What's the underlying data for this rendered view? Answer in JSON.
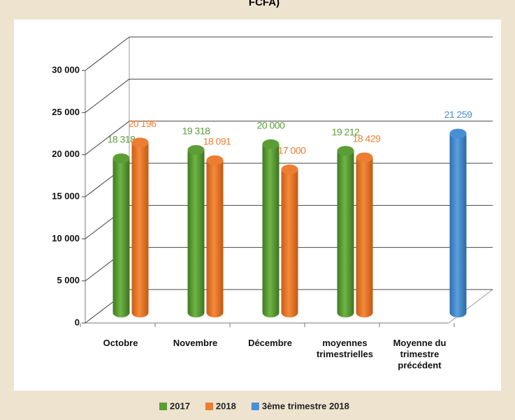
{
  "chart_data": {
    "type": "bar",
    "title": "FCFA)",
    "categories": [
      "Octobre",
      "Novembre",
      "Décembre",
      "moyennes trimestrielles",
      "Moyenne du trimestre précédent"
    ],
    "series": [
      {
        "name": "2017",
        "color": "#5c9e36",
        "values": [
          18318,
          19318,
          20000,
          19212,
          null
        ],
        "value_labels": [
          "18 318",
          "19 318",
          "20 000",
          "19 212",
          null
        ]
      },
      {
        "name": "2018",
        "color": "#ed7d31",
        "values": [
          20196,
          18091,
          17000,
          18429,
          null
        ],
        "value_labels": [
          "20 196",
          "18 091",
          "17 000",
          "18 429",
          null
        ]
      },
      {
        "name": "3ème trimestre 2018",
        "color": "#4a8fd4",
        "values": [
          null,
          null,
          null,
          null,
          21259
        ],
        "value_labels": [
          null,
          null,
          null,
          null,
          "21 259"
        ]
      }
    ],
    "ylim": [
      0,
      30000
    ],
    "yticks": [
      0,
      {
        "value": 5000,
        "label": "5 000"
      },
      {
        "value": 10000,
        "label": "10 000"
      },
      {
        "value": 15000,
        "label": "15 000"
      },
      {
        "value": 20000,
        "label": "20 000"
      },
      {
        "value": 25000,
        "label": "25 000"
      },
      {
        "value": 30000,
        "label": "30 000"
      }
    ],
    "grid": true,
    "legend": "bottom"
  }
}
